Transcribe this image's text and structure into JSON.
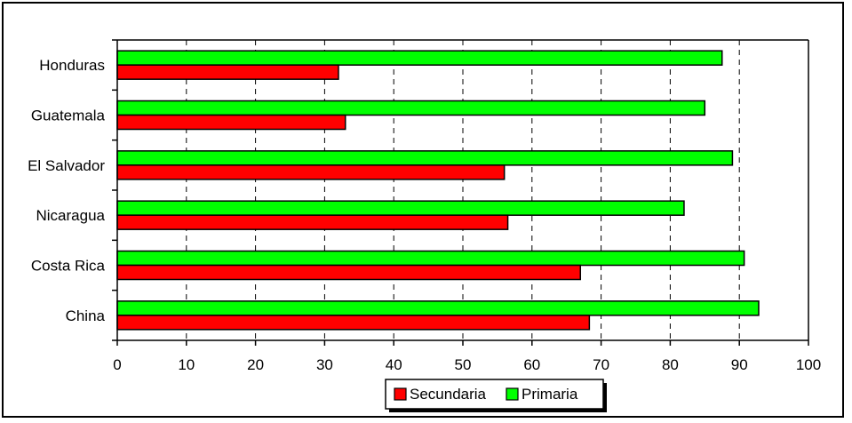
{
  "chart_data": {
    "type": "bar",
    "orientation": "horizontal",
    "categories": [
      "Honduras",
      "Guatemala",
      "El Salvador",
      "Nicaragua",
      "Costa Rica",
      "China"
    ],
    "series": [
      {
        "name": "Primaria",
        "color": "#00ff00",
        "values": [
          87.5,
          85,
          89,
          82,
          90.7,
          92.8
        ]
      },
      {
        "name": "Secundaria",
        "color": "#ff0000",
        "values": [
          32,
          33,
          56,
          56.5,
          67,
          68.3
        ]
      }
    ],
    "xlim": [
      0,
      100
    ],
    "xticks": [
      0,
      10,
      20,
      30,
      40,
      50,
      60,
      70,
      80,
      90,
      100
    ],
    "grid": "vertical-dashed",
    "legend": {
      "placement": "bottom-center",
      "entries": [
        {
          "label": "Secundaria",
          "color": "#ff0000"
        },
        {
          "label": "Primaria",
          "color": "#00ff00"
        }
      ]
    }
  }
}
